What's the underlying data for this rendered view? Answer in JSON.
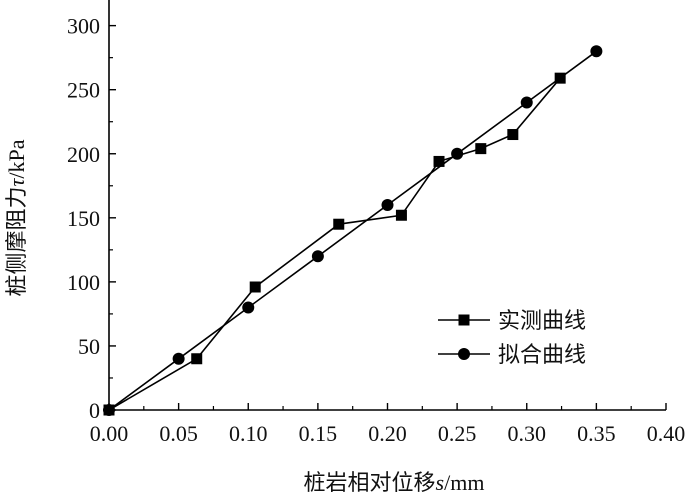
{
  "chart_data": {
    "type": "line",
    "xlabel": {
      "prefix": "桩岩相对位移",
      "var": "s",
      "unit": "/mm"
    },
    "ylabel": {
      "prefix": "桩侧摩阻力",
      "var": "τ",
      "unit": "/kPa"
    },
    "xlim": [
      0,
      0.4
    ],
    "ylim": [
      0,
      320
    ],
    "x_ticks": [
      0.0,
      0.05,
      0.1,
      0.15,
      0.2,
      0.25,
      0.3,
      0.35,
      0.4
    ],
    "x_tick_labels": [
      "0.00",
      "0.05",
      "0.10",
      "0.15",
      "0.20",
      "0.25",
      "0.30",
      "0.35",
      "0.40"
    ],
    "y_ticks": [
      0,
      50,
      100,
      150,
      200,
      250,
      300
    ],
    "y_tick_labels": [
      "0",
      "50",
      "100",
      "150",
      "200",
      "250",
      "300"
    ],
    "grid": false,
    "legend_position": "bottom-right",
    "series": [
      {
        "name": "实测曲线",
        "marker": "square",
        "color": "#000000",
        "x": [
          0.0,
          0.063,
          0.105,
          0.165,
          0.21,
          0.237,
          0.267,
          0.29,
          0.324
        ],
        "y": [
          0,
          40,
          96,
          145,
          152,
          194,
          204,
          215,
          259
        ]
      },
      {
        "name": "拟合曲线",
        "marker": "circle",
        "color": "#000000",
        "x": [
          0.0,
          0.05,
          0.1,
          0.15,
          0.2,
          0.25,
          0.3,
          0.35
        ],
        "y": [
          0,
          40,
          80,
          120,
          160,
          200,
          240,
          280
        ]
      }
    ]
  }
}
